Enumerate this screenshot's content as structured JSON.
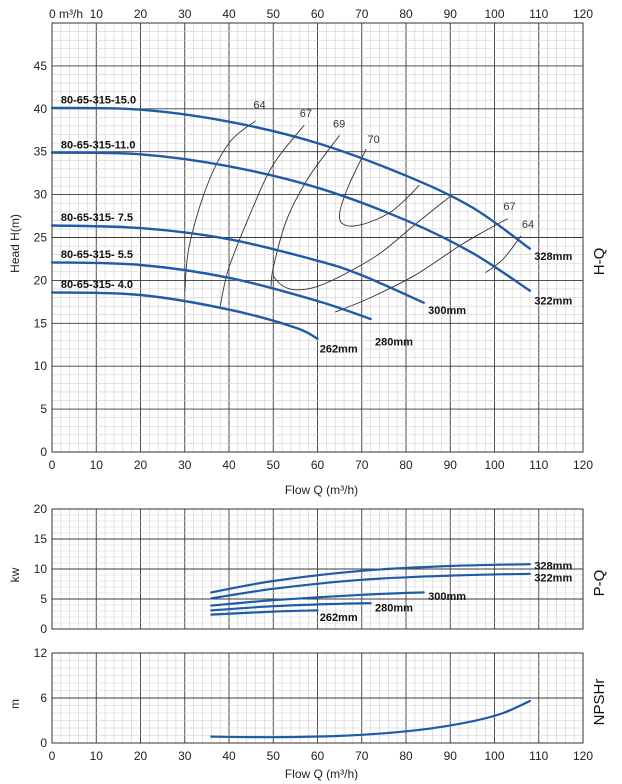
{
  "chart_data": [
    {
      "id": "hq",
      "type": "line",
      "x_label": "Flow Q (m³/h)",
      "x_top_unit": "m³/h",
      "y_label": "Head H(m)",
      "side_label": "H-Q",
      "xlim": [
        0,
        120
      ],
      "ylim": [
        0,
        50
      ],
      "xticks": [
        0,
        10,
        20,
        30,
        40,
        50,
        60,
        70,
        80,
        90,
        100,
        110,
        120
      ],
      "yticks": [
        0,
        5,
        10,
        15,
        20,
        25,
        30,
        35,
        40,
        45
      ],
      "grid": true,
      "line_color": "#1f5ba6",
      "series": [
        {
          "name": "328mm",
          "x": [
            0,
            20,
            40,
            60,
            80,
            95,
            108
          ],
          "y": [
            40.1,
            39.9,
            38.5,
            36.0,
            32.2,
            28.5,
            23.7
          ]
        },
        {
          "name": "322mm",
          "x": [
            0,
            20,
            40,
            60,
            80,
            95,
            108
          ],
          "y": [
            34.9,
            34.7,
            33.3,
            30.8,
            27.0,
            23.2,
            18.8
          ]
        },
        {
          "name": "300mm",
          "x": [
            0,
            20,
            40,
            60,
            70,
            84
          ],
          "y": [
            26.4,
            26.1,
            24.8,
            22.3,
            20.6,
            17.4
          ]
        },
        {
          "name": "280mm",
          "x": [
            0,
            20,
            40,
            60,
            72
          ],
          "y": [
            22.1,
            21.8,
            20.3,
            17.6,
            15.5
          ]
        },
        {
          "name": "262mm",
          "x": [
            0,
            20,
            40,
            55,
            60
          ],
          "y": [
            18.6,
            18.3,
            16.6,
            14.5,
            13.2
          ]
        }
      ],
      "model_labels": [
        {
          "text": "80-65-315-15.0",
          "x": 2,
          "y": 40.6
        },
        {
          "text": "80-65-315-11.0",
          "x": 2,
          "y": 35.4
        },
        {
          "text": "80-65-315- 7.5",
          "x": 2,
          "y": 26.9
        },
        {
          "text": "80-65-315- 5.5",
          "x": 2,
          "y": 22.6
        },
        {
          "text": "80-65-315- 4.0",
          "x": 2,
          "y": 19.1
        }
      ],
      "diameter_labels": [
        {
          "text": "328mm",
          "x": 109,
          "y": 22.4
        },
        {
          "text": "322mm",
          "x": 109,
          "y": 17.2
        },
        {
          "text": "300mm",
          "x": 85,
          "y": 16.1
        },
        {
          "text": "280mm",
          "x": 73,
          "y": 12.4
        },
        {
          "text": "262mm",
          "x": 60.5,
          "y": 11.6
        }
      ],
      "efficiency_curves": [
        {
          "label": "64",
          "x": [
            30,
            31,
            35,
            40,
            46
          ],
          "y": [
            18.7,
            24,
            31,
            36,
            38.6
          ],
          "label_at": [
            45.5,
            39.8
          ]
        },
        {
          "label": "67",
          "x": [
            38,
            40,
            45,
            50,
            57
          ],
          "y": [
            17,
            21.5,
            28,
            33.5,
            38.1
          ],
          "label_at": [
            56,
            38.8
          ]
        },
        {
          "label": "69",
          "x": [
            49.5,
            50,
            53,
            58,
            65
          ],
          "y": [
            19.3,
            21.5,
            27,
            32,
            36.9
          ],
          "label_at": [
            63.5,
            37.6
          ]
        },
        {
          "label": "70",
          "x": [
            71,
            67,
            65,
            66,
            70,
            76,
            80,
            83
          ],
          "y": [
            35.3,
            31,
            27.8,
            26.5,
            26.5,
            27.8,
            29.5,
            31.1
          ],
          "label_at": [
            71.3,
            35.8
          ]
        },
        {
          "label": "",
          "x": [
            50,
            52,
            55,
            60,
            66,
            74,
            82,
            90
          ],
          "y": [
            20.5,
            19.4,
            18.9,
            19.3,
            20.7,
            23.1,
            26.5,
            29.8
          ]
        },
        {
          "label": "67",
          "x": [
            64,
            72,
            82,
            92,
            98,
            103
          ],
          "y": [
            16.3,
            18,
            20.6,
            24,
            25.8,
            27.2
          ],
          "label_at": [
            102,
            28.0
          ]
        },
        {
          "label": "64",
          "x": [
            98,
            102,
            106
          ],
          "y": [
            20.9,
            22.5,
            25.2
          ],
          "label_at": [
            106.2,
            25.9
          ]
        }
      ]
    },
    {
      "id": "pq",
      "type": "line",
      "y_label": "kw",
      "side_label": "P-Q",
      "xlim": [
        0,
        120
      ],
      "ylim": [
        0,
        20
      ],
      "yticks": [
        0,
        5,
        10,
        15,
        20
      ],
      "grid": true,
      "series": [
        {
          "name": "328mm",
          "x": [
            36,
            50,
            70,
            90,
            108
          ],
          "y": [
            6.1,
            8.0,
            9.7,
            10.5,
            10.8
          ]
        },
        {
          "name": "322mm",
          "x": [
            36,
            50,
            70,
            90,
            108
          ],
          "y": [
            5.1,
            6.7,
            8.2,
            8.9,
            9.2
          ]
        },
        {
          "name": "300mm",
          "x": [
            36,
            50,
            70,
            84
          ],
          "y": [
            3.9,
            4.8,
            5.7,
            6.1
          ]
        },
        {
          "name": "280mm",
          "x": [
            36,
            50,
            65,
            72
          ],
          "y": [
            3.1,
            3.8,
            4.2,
            4.3
          ]
        },
        {
          "name": "262mm",
          "x": [
            36,
            50,
            60
          ],
          "y": [
            2.4,
            2.9,
            3.1
          ]
        }
      ],
      "diameter_labels": [
        {
          "text": "328mm",
          "x": 109,
          "y": 10.6
        },
        {
          "text": "322mm",
          "x": 109,
          "y": 8.6
        },
        {
          "text": "300mm",
          "x": 85,
          "y": 5.5
        },
        {
          "text": "280mm",
          "x": 73,
          "y": 3.6
        },
        {
          "text": "262mm",
          "x": 60.5,
          "y": 2.0
        }
      ]
    },
    {
      "id": "npsh",
      "type": "line",
      "x_label": "Flow Q (m³/h)",
      "y_label": "m",
      "side_label": "NPSHr",
      "xlim": [
        0,
        120
      ],
      "ylim": [
        0,
        12
      ],
      "yticks": [
        0,
        6,
        12
      ],
      "grid": true,
      "series": [
        {
          "name": "",
          "x": [
            36,
            45,
            55,
            65,
            75,
            85,
            95,
            102,
            108
          ],
          "y": [
            0.85,
            0.78,
            0.8,
            0.95,
            1.3,
            1.9,
            2.9,
            4.0,
            5.6
          ]
        }
      ]
    }
  ]
}
